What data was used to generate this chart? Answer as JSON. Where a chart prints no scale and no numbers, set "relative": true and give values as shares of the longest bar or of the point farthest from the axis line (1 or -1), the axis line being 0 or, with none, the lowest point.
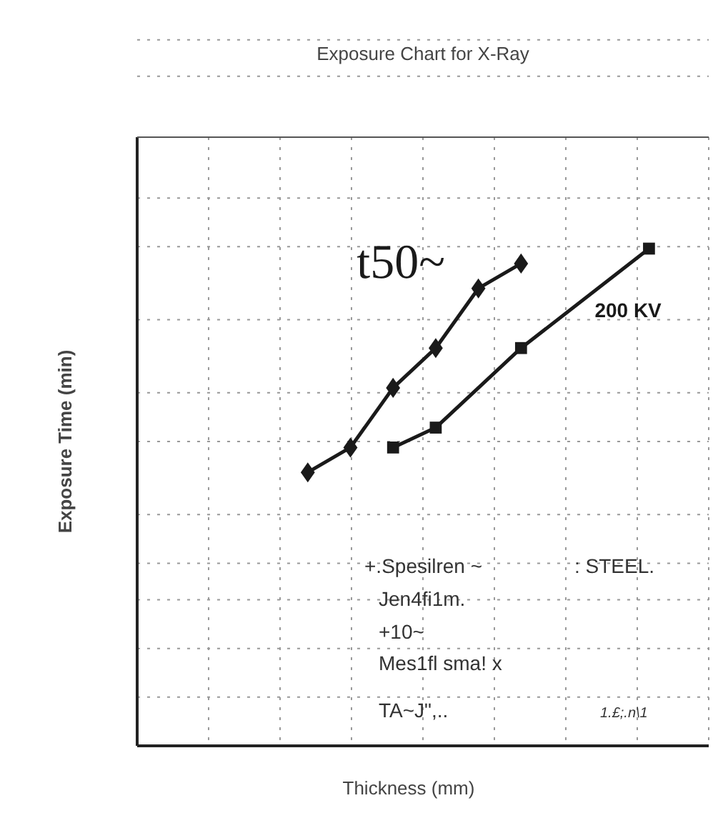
{
  "chart_data": {
    "type": "line",
    "title": "Exposure Chart for X-Ray",
    "xlabel": "Thickness (mm)",
    "ylabel": "Exposure Time (min)",
    "relative": true,
    "grid": true,
    "categories": [
      null,
      null,
      null,
      null,
      null,
      null,
      null,
      null,
      null,
      null,
      null,
      null,
      null,
      null
    ],
    "series": [
      {
        "name": "t50~",
        "color": "#1a1a1a",
        "marker": "diamond",
        "values": [
          null,
          null,
          null,
          null,
          0.55,
          0.6,
          0.72,
          0.8,
          0.92,
          0.97,
          null,
          null,
          null,
          null
        ]
      },
      {
        "name": "200 KV",
        "color": "#1a1a1a",
        "marker": "square",
        "values": [
          null,
          null,
          null,
          null,
          null,
          null,
          0.6,
          0.64,
          null,
          0.8,
          null,
          null,
          1,
          null
        ]
      }
    ],
    "annotations": [
      "+.Spesilren ~",
      ": STEEL.",
      "Jen4fi1m.",
      "+10~",
      "Mes1fl sma!  x",
      "TA~J\",..",
      "1.£;.n\\1"
    ]
  }
}
